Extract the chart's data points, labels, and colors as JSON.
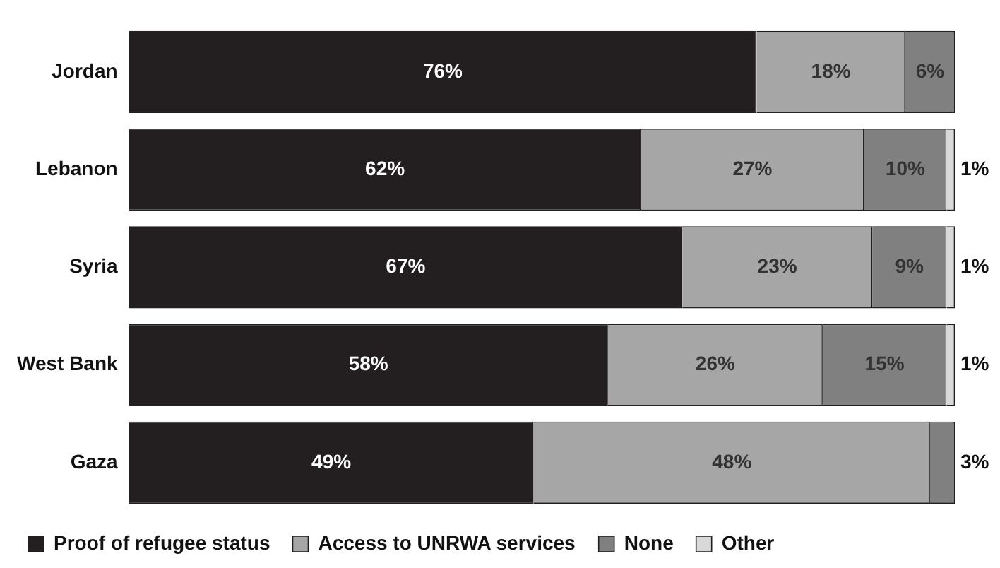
{
  "chart_data": {
    "type": "bar",
    "orientation": "horizontal",
    "stacked": true,
    "categories": [
      "Jordan",
      "Lebanon",
      "Syria",
      "West Bank",
      "Gaza"
    ],
    "xlim": [
      0,
      100
    ],
    "tick_labels": "y",
    "legend": "bottom",
    "series": [
      {
        "name": "Proof of refugee status",
        "color": "#231f20",
        "values": [
          76,
          62,
          67,
          58,
          49
        ],
        "value_labels": [
          "76%",
          "62%",
          "67%",
          "58%",
          "49%"
        ]
      },
      {
        "name": "Access to UNRWA services",
        "color": "#a6a6a6",
        "values": [
          18,
          27,
          23,
          26,
          48
        ],
        "value_labels": [
          "18%",
          "27%",
          "23%",
          "26%",
          "48%"
        ]
      },
      {
        "name": "None",
        "color": "#808080",
        "values": [
          6,
          10,
          9,
          15,
          3
        ],
        "value_labels": [
          "6%",
          "10%",
          "9%",
          "15%",
          "3%"
        ]
      },
      {
        "name": "Other",
        "color": "#d9d9d9",
        "values": [
          null,
          1,
          1,
          1,
          null
        ],
        "value_labels": [
          null,
          "1%",
          "1%",
          "1%",
          null
        ]
      }
    ]
  }
}
